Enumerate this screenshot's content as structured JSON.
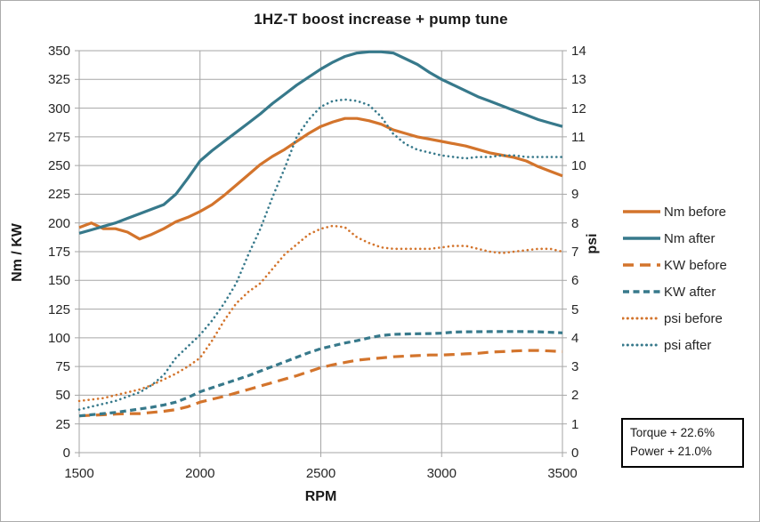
{
  "title": "1HZ-T  boost increase + pump tune",
  "annotation": {
    "line1": "Torque + 22.6%",
    "line2": "Power + 21.0%"
  },
  "colors": {
    "orange": "#D3742C",
    "teal": "#37798B",
    "grid": "#A6A6A6",
    "text": "#262626"
  },
  "chart_data": {
    "type": "line",
    "title": "1HZ-T  boost increase + pump tune",
    "xlabel": "RPM",
    "ylabel_left": "Nm / KW",
    "ylabel_right": "psi",
    "xlim": [
      1500,
      3500
    ],
    "ylim_left": [
      0,
      350
    ],
    "ylim_right": [
      0,
      14
    ],
    "x_tick_step": 500,
    "y_left_tick_step": 25,
    "y_right_tick_step": 1,
    "grid": true,
    "legend_position": "right",
    "x": [
      1500,
      1550,
      1600,
      1650,
      1700,
      1750,
      1800,
      1850,
      1900,
      1950,
      2000,
      2050,
      2100,
      2150,
      2200,
      2250,
      2300,
      2350,
      2400,
      2450,
      2500,
      2550,
      2600,
      2650,
      2700,
      2750,
      2800,
      2850,
      2900,
      2950,
      3000,
      3050,
      3100,
      3150,
      3200,
      3250,
      3300,
      3350,
      3400,
      3450,
      3500
    ],
    "series": [
      {
        "name": "Nm before",
        "axis": "left",
        "color": "orange",
        "style": "solid",
        "values": [
          196,
          200,
          195,
          195,
          192,
          186,
          190,
          195,
          201,
          205,
          210,
          216,
          224,
          233,
          242,
          251,
          258,
          264,
          271,
          278,
          284,
          288,
          291,
          291,
          289,
          286,
          281,
          278,
          275,
          273,
          271,
          269,
          267,
          264,
          261,
          259,
          257,
          254,
          249,
          245,
          241
        ]
      },
      {
        "name": "Nm after",
        "axis": "left",
        "color": "teal",
        "style": "solid",
        "values": [
          191,
          194,
          197,
          200,
          204,
          208,
          212,
          216,
          225,
          239,
          254,
          263,
          271,
          279,
          287,
          295,
          304,
          312,
          320,
          327,
          334,
          340,
          345,
          348,
          349,
          349,
          348,
          343,
          338,
          331,
          325,
          320,
          315,
          310,
          306,
          302,
          298,
          294,
          290,
          287,
          284
        ]
      },
      {
        "name": "KW before",
        "axis": "left",
        "color": "orange",
        "style": "dash-long",
        "values": [
          32,
          32.5,
          33,
          33.5,
          34,
          34,
          35,
          36,
          37.5,
          40,
          44,
          46.5,
          49,
          52,
          55,
          58,
          61,
          64,
          67,
          70.5,
          74,
          76.5,
          78.5,
          80.5,
          81.5,
          82.5,
          83.5,
          84,
          84.5,
          85,
          85,
          85.5,
          86,
          86.5,
          87.5,
          88,
          88.5,
          89,
          89,
          88.5,
          88
        ]
      },
      {
        "name": "KW after",
        "axis": "left",
        "color": "teal",
        "style": "dash-short",
        "values": [
          32,
          33,
          34,
          35,
          36.5,
          38,
          39.5,
          41.5,
          44,
          48,
          53,
          56.5,
          60,
          63.5,
          67,
          71,
          75,
          79,
          83,
          87,
          90.5,
          93,
          95.5,
          97.5,
          100,
          102,
          103,
          103.3,
          103.5,
          103.7,
          104,
          105,
          105.2,
          105.3,
          105.4,
          105.5,
          105.5,
          105.4,
          105.2,
          104.8,
          104.3
        ]
      },
      {
        "name": "psi before",
        "axis": "right",
        "color": "orange",
        "style": "dotted",
        "values": [
          1.8,
          1.85,
          1.9,
          2.0,
          2.1,
          2.2,
          2.35,
          2.55,
          2.75,
          3.0,
          3.3,
          3.9,
          4.6,
          5.2,
          5.6,
          5.9,
          6.4,
          6.9,
          7.25,
          7.6,
          7.8,
          7.9,
          7.85,
          7.5,
          7.3,
          7.15,
          7.1,
          7.1,
          7.1,
          7.1,
          7.15,
          7.2,
          7.2,
          7.1,
          7.0,
          6.95,
          7.0,
          7.05,
          7.1,
          7.1,
          7.0
        ]
      },
      {
        "name": "psi after",
        "axis": "right",
        "color": "teal",
        "style": "dotted",
        "values": [
          1.5,
          1.6,
          1.7,
          1.8,
          1.95,
          2.1,
          2.35,
          2.7,
          3.3,
          3.7,
          4.1,
          4.6,
          5.2,
          5.9,
          6.9,
          7.8,
          8.9,
          9.9,
          11.0,
          11.6,
          12.05,
          12.25,
          12.3,
          12.25,
          12.1,
          11.7,
          11.1,
          10.75,
          10.55,
          10.45,
          10.35,
          10.3,
          10.25,
          10.3,
          10.3,
          10.35,
          10.35,
          10.3,
          10.3,
          10.3,
          10.3
        ]
      }
    ]
  }
}
